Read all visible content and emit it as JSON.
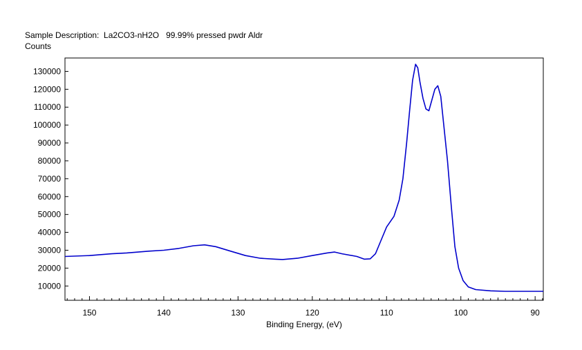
{
  "chart_data": {
    "type": "line",
    "title": "Sample Description:  La2CO3-nH2O   99.99% pressed pwdr Aldr",
    "ylabel": "Counts",
    "xlabel": "Binding Energy, (eV)",
    "xlim": [
      153.3,
      88.9
    ],
    "ylim": [
      2000,
      137500
    ],
    "x_reversed": true,
    "grid": false,
    "legend": "none",
    "line_color": "#0000cc",
    "x_ticks": [
      150,
      140,
      130,
      120,
      110,
      100,
      90
    ],
    "y_ticks": [
      10000,
      20000,
      30000,
      40000,
      50000,
      60000,
      70000,
      80000,
      90000,
      100000,
      110000,
      120000,
      130000
    ],
    "series": [
      {
        "x": [
          153.3,
          150,
          147,
          145,
          142,
          140,
          138,
          136,
          134.5,
          133,
          131,
          129,
          127,
          125,
          124,
          122,
          120,
          118,
          117,
          116,
          114,
          113,
          112.2,
          111.5,
          110.8,
          110,
          109,
          108.3,
          107.8,
          107.3,
          106.9,
          106.5,
          106.1,
          105.8,
          105.5,
          105.1,
          104.7,
          104.3,
          103.9,
          103.5,
          103.1,
          102.7,
          102.3,
          101.8,
          101.3,
          100.8,
          100.3,
          99.7,
          99,
          98,
          96,
          94,
          92,
          90,
          88.9
        ],
        "y": [
          26500,
          27000,
          28000,
          28500,
          29500,
          30000,
          31000,
          32500,
          33000,
          32000,
          29500,
          27000,
          25500,
          25000,
          24800,
          25500,
          27000,
          28500,
          29000,
          28000,
          26500,
          25000,
          25200,
          28000,
          35000,
          43000,
          49000,
          58000,
          70000,
          90000,
          108000,
          125000,
          134000,
          132000,
          124000,
          115000,
          109000,
          108000,
          114000,
          120000,
          122000,
          116000,
          100000,
          80000,
          55000,
          32000,
          20000,
          13000,
          9500,
          8000,
          7300,
          7000,
          7000,
          7000,
          7000
        ]
      }
    ]
  }
}
